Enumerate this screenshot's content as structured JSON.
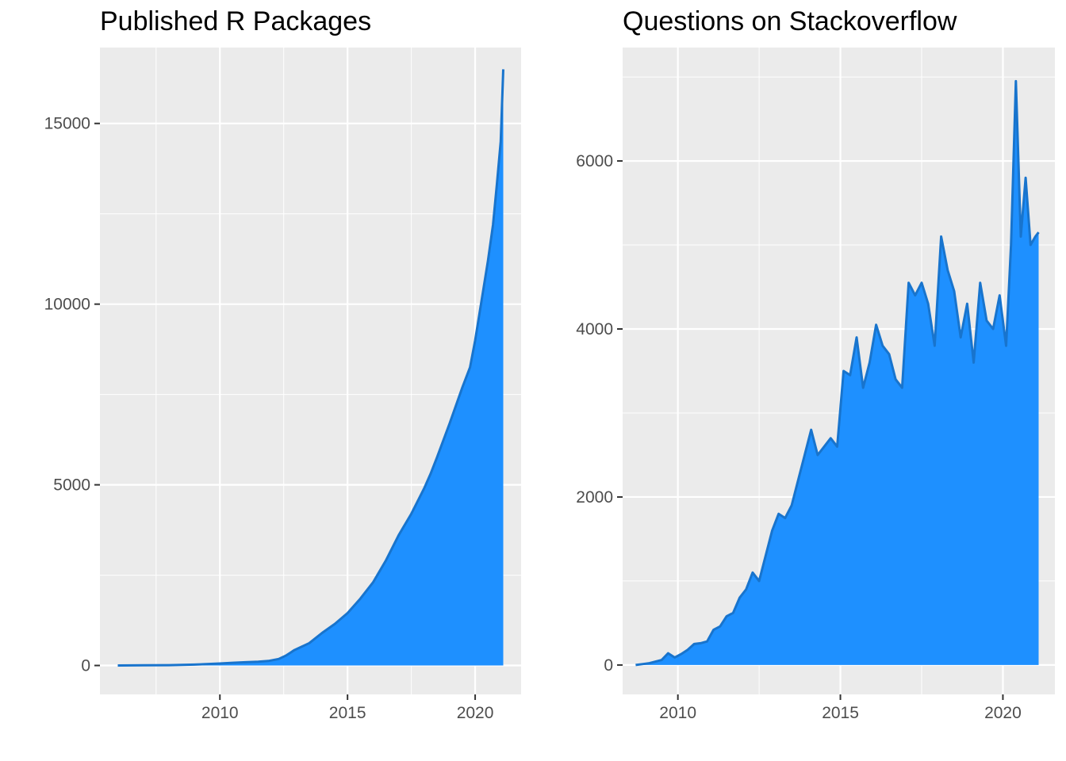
{
  "chart_data": [
    {
      "type": "area",
      "title": "Published R Packages",
      "xlabel": "",
      "ylabel": "",
      "xlim": [
        2005.3,
        2021.8
      ],
      "ylim": [
        -800,
        17100
      ],
      "x_ticks": [
        2010,
        2015,
        2020
      ],
      "x_tick_labels": [
        "2010",
        "2015",
        "2020"
      ],
      "y_ticks": [
        0,
        5000,
        10000,
        15000
      ],
      "y_tick_labels": [
        "0",
        "5000",
        "10000",
        "15000"
      ],
      "grid": true,
      "legend": "none",
      "fill_color": "#1e90ff",
      "line_color": "#1874cd",
      "panel_background": "#ebebeb",
      "series": [
        {
          "x": [
            2006.0,
            2007.0,
            2008.0,
            2009.0,
            2010.0,
            2010.5,
            2011.0,
            2011.5,
            2011.9,
            2012.3,
            2012.6,
            2012.75,
            2012.9,
            2013.5,
            2014.0,
            2014.5,
            2015.0,
            2015.5,
            2016.0,
            2016.5,
            2017.0,
            2017.5,
            2018.0,
            2018.25,
            2018.5,
            2019.0,
            2019.5,
            2019.8,
            2020.0,
            2020.5,
            2020.7,
            2020.85,
            2021.0,
            2021.1
          ],
          "y": [
            0,
            5,
            10,
            25,
            55,
            75,
            90,
            105,
            125,
            180,
            280,
            350,
            420,
            620,
            900,
            1150,
            1450,
            1850,
            2300,
            2900,
            3600,
            4200,
            4900,
            5300,
            5750,
            6700,
            7700,
            8250,
            9000,
            11200,
            12200,
            13300,
            14500,
            16500
          ]
        }
      ]
    },
    {
      "type": "area",
      "title": "Questions on Stackoverflow",
      "xlabel": "",
      "ylabel": "",
      "xlim": [
        2008.3,
        2021.6
      ],
      "ylim": [
        -350,
        7350
      ],
      "x_ticks": [
        2010,
        2015,
        2020
      ],
      "x_tick_labels": [
        "2010",
        "2015",
        "2020"
      ],
      "y_ticks": [
        0,
        2000,
        4000,
        6000
      ],
      "y_tick_labels": [
        "0",
        "2000",
        "4000",
        "6000"
      ],
      "grid": true,
      "legend": "none",
      "fill_color": "#1e90ff",
      "line_color": "#1874cd",
      "panel_background": "#ebebeb",
      "series": [
        {
          "x": [
            2008.7,
            2008.9,
            2009.1,
            2009.3,
            2009.5,
            2009.7,
            2009.9,
            2010.1,
            2010.3,
            2010.5,
            2010.7,
            2010.9,
            2011.1,
            2011.3,
            2011.5,
            2011.7,
            2011.9,
            2012.1,
            2012.3,
            2012.5,
            2012.7,
            2012.9,
            2013.1,
            2013.3,
            2013.5,
            2013.7,
            2013.9,
            2014.1,
            2014.3,
            2014.5,
            2014.7,
            2014.9,
            2015.1,
            2015.3,
            2015.5,
            2015.7,
            2015.9,
            2016.1,
            2016.3,
            2016.5,
            2016.7,
            2016.9,
            2017.1,
            2017.3,
            2017.5,
            2017.7,
            2017.9,
            2018.1,
            2018.3,
            2018.5,
            2018.7,
            2018.9,
            2019.1,
            2019.3,
            2019.5,
            2019.7,
            2019.9,
            2020.1,
            2020.25,
            2020.4,
            2020.55,
            2020.7,
            2020.85,
            2021.0,
            2021.1
          ],
          "y": [
            0,
            10,
            20,
            40,
            60,
            140,
            90,
            130,
            180,
            250,
            260,
            280,
            420,
            460,
            580,
            620,
            800,
            900,
            1100,
            1000,
            1300,
            1600,
            1800,
            1750,
            1900,
            2200,
            2500,
            2800,
            2500,
            2600,
            2700,
            2600,
            3500,
            3450,
            3900,
            3300,
            3600,
            4050,
            3800,
            3700,
            3400,
            3300,
            4550,
            4400,
            4550,
            4300,
            3800,
            5100,
            4700,
            4450,
            3900,
            4300,
            3600,
            4550,
            4100,
            4000,
            4400,
            3800,
            5000,
            6950,
            5100,
            5800,
            5000,
            5100,
            5150
          ]
        }
      ]
    }
  ]
}
